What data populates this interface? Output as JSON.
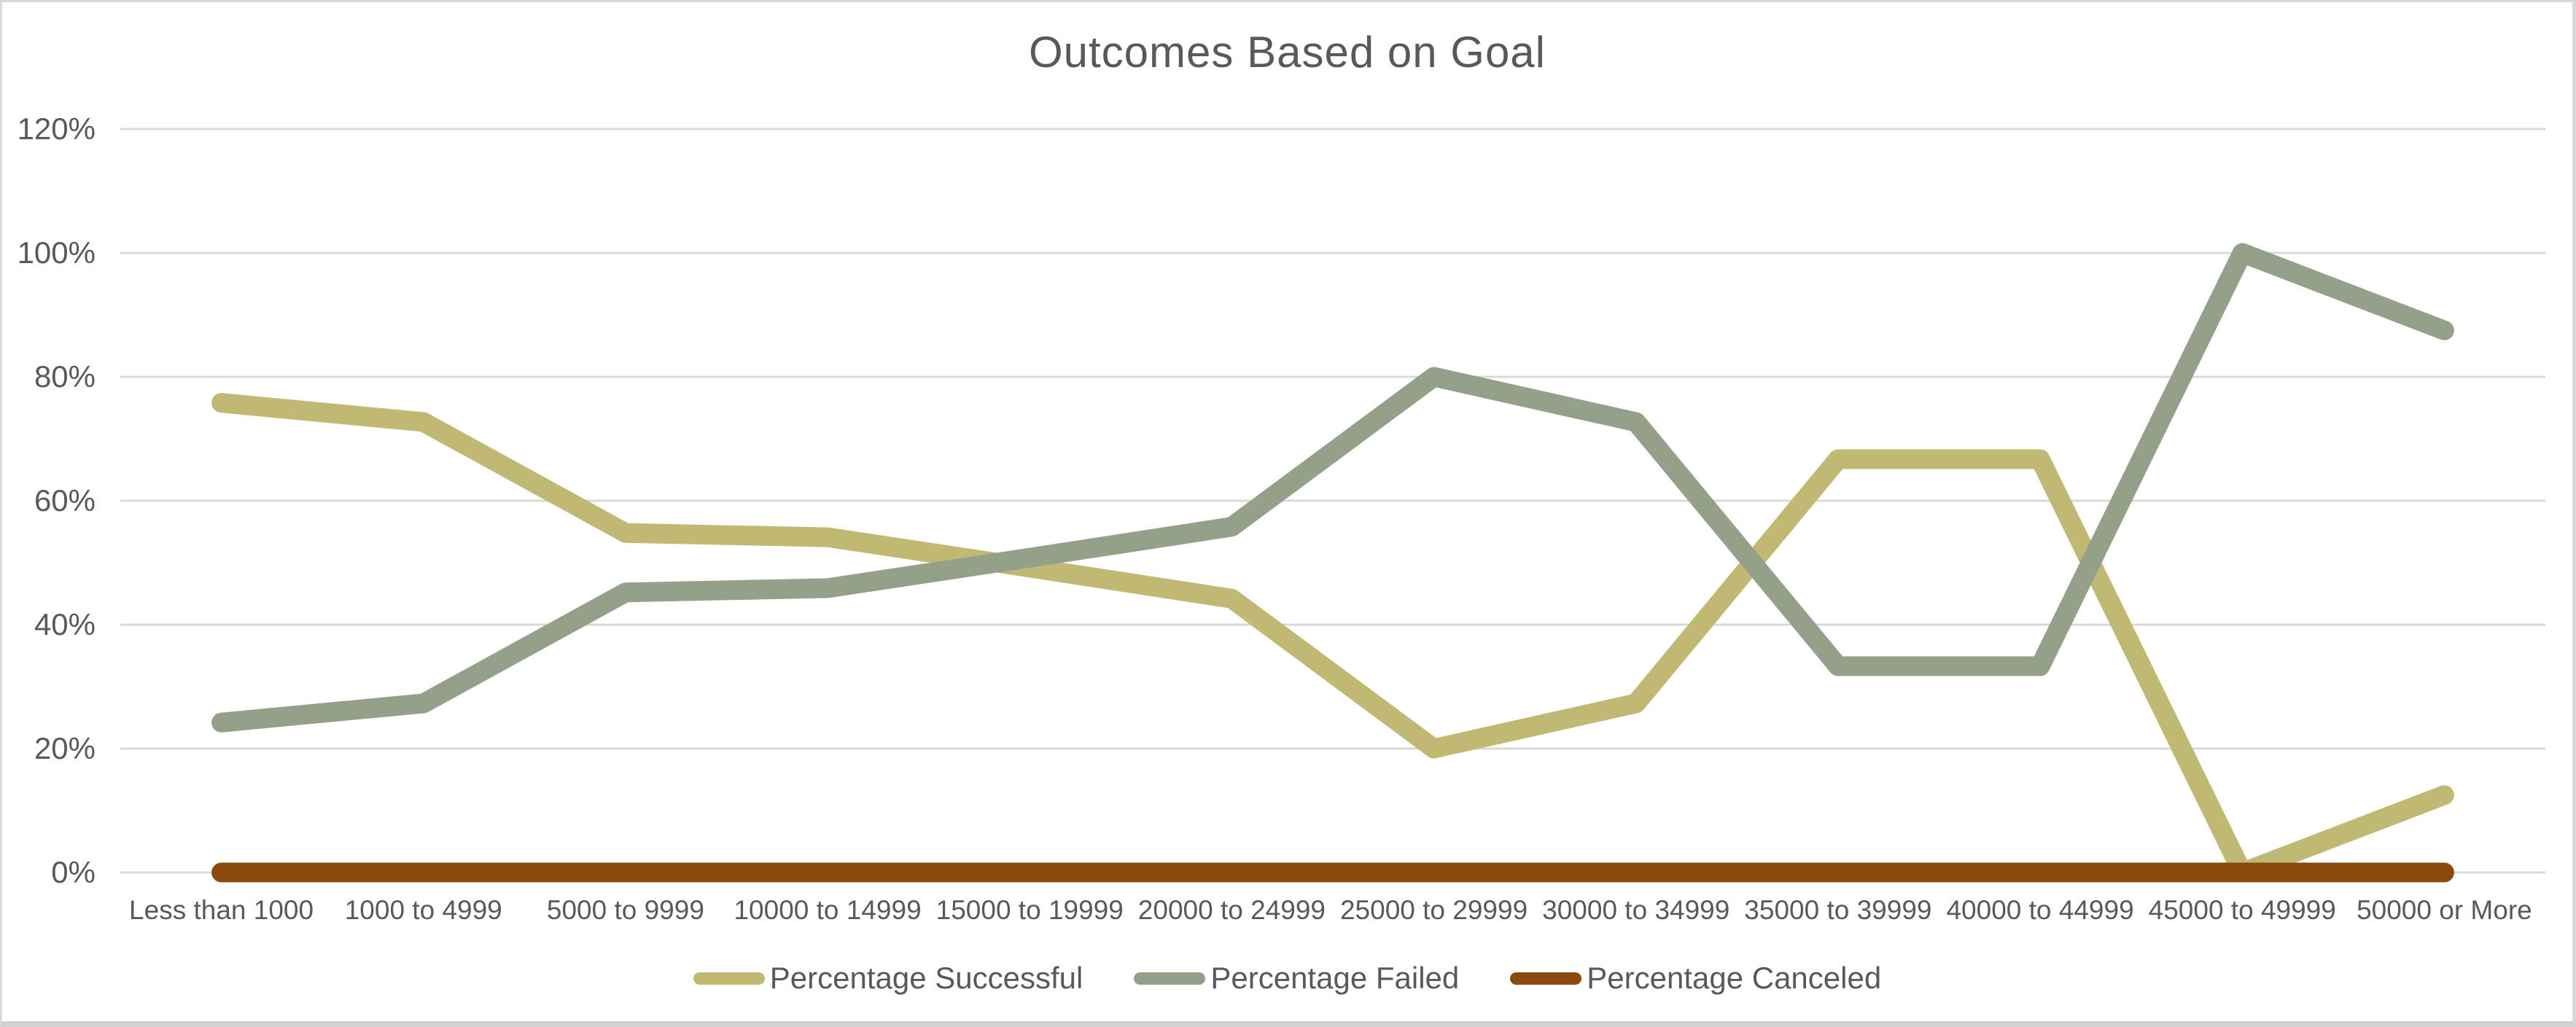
{
  "window": {
    "background": "#ffffff",
    "frame_border_color": "#d9d9d9"
  },
  "chart_data": {
    "type": "line",
    "title": "Outcomes Based on Goal",
    "categories": [
      "Less than 1000",
      "1000 to 4999",
      "5000 to 9999",
      "10000 to 14999",
      "15000 to 19999",
      "20000 to 24999",
      "25000 to 29999",
      "30000 to 34999",
      "35000 to 39999",
      "40000 to 44999",
      "45000 to 49999",
      "50000 or More"
    ],
    "series": [
      {
        "name": "Percentage Successful",
        "color": "#BFB973",
        "values": [
          75.8,
          72.7,
          54.8,
          54.1,
          49.2,
          44.2,
          20.0,
          27.3,
          66.7,
          66.7,
          0.0,
          12.5
        ]
      },
      {
        "name": "Percentage Failed",
        "color": "#94A089",
        "values": [
          24.2,
          27.3,
          45.2,
          45.9,
          50.8,
          55.8,
          80.0,
          72.7,
          33.3,
          33.3,
          100.0,
          87.5
        ]
      },
      {
        "name": "Percentage Canceled",
        "color": "#8B4A0D",
        "values": [
          0.0,
          0.0,
          0.0,
          0.0,
          0.0,
          0.0,
          0.0,
          0.0,
          0.0,
          0.0,
          0.0,
          0.0
        ]
      }
    ],
    "y_axis": {
      "tick_labels": [
        "0%",
        "20%",
        "40%",
        "60%",
        "80%",
        "100%",
        "120%"
      ],
      "tick_values": [
        0,
        20,
        40,
        60,
        80,
        100,
        120
      ],
      "min": 0,
      "max": 120
    },
    "grid": true,
    "gridline_color": "#d9d9d9",
    "text_color": "#595959",
    "legend_position": "bottom"
  }
}
